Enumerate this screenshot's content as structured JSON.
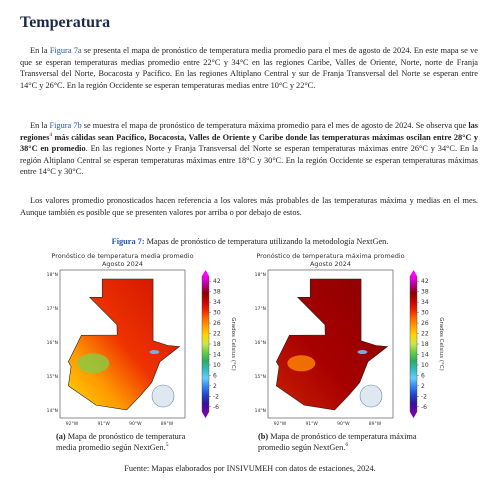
{
  "header": {
    "title": "Temperatura"
  },
  "paragraphs": [
    [
      {
        "text": "En la "
      },
      {
        "text": "Figura 7a",
        "style": "link"
      },
      {
        "text": " se presenta el mapa de pronóstico de temperatura media promedio para el mes de agosto de 2024. En este mapa se ve que se esperan temperaturas medias promedio entre 22°C y 34°C en las regiones Caribe, Valles de Oriente, Norte, norte de Franja Transversal del Norte, Bocacosta y Pacífico. En las regiones Altiplano Central y sur de Franja Transversal del Norte se esperan entre 14°C y 26°C. En la región Occidente se esperan temperaturas medias entre 10°C y 22°C."
      }
    ],
    [
      {
        "text": "En la "
      },
      {
        "text": "Figura 7b",
        "style": "link"
      },
      {
        "text": " se muestra el mapa de pronóstico de temperatura máxima promedio para el mes de agosto de 2024. Se observa que "
      },
      {
        "text": "las regiones",
        "style": "bold"
      },
      {
        "text": "4",
        "style": "sup"
      },
      {
        "text": " más cálidas sean Pacífico, Bocacosta, Valles de Oriente y Caribe donde las temperaturas máximas oscilan entre 28°C y 38°C en promedio",
        "style": "bold"
      },
      {
        "text": ". En las regiones Norte y Franja Transversal del Norte se esperan temperaturas máximas entre 26°C y 34°C. En la región Altiplano Central se esperan temperaturas máximas entre 18°C y 30°C. En la región Occidente se esperan temperaturas máximas entre 14°C y 30°C."
      }
    ],
    [
      {
        "text": "Los valores promedio pronosticados hacen referencia a los valores más probables de las temperaturas máxima y medias en el mes. Aunque también es posible que se presenten valores por arriba o por debajo de estos."
      }
    ]
  ],
  "figure": {
    "caption": [
      {
        "text": "Figura 7:",
        "style": "bold-link"
      },
      {
        "text": " Mapas de pronóstico de temperatura utilizando la metodología NextGen."
      }
    ],
    "maps": [
      {
        "title": "Pronóstico de temperatura media promedio",
        "subtitle": "Agosto 2024",
        "palette": "media",
        "caption": [
          {
            "text": "(a)",
            "style": "bold"
          },
          {
            "text": " Mapa de pronóstico de temperatura media promedio según NextGen."
          },
          {
            "text": "5",
            "style": "sup"
          }
        ]
      },
      {
        "title": "Pronóstico de temperatura máxima promedio",
        "subtitle": "Agosto 2024",
        "palette": "maxima",
        "caption": [
          {
            "text": "(b)",
            "style": "bold"
          },
          {
            "text": " Mapa de pronóstico de temperatura máxima promedio según NextGen."
          },
          {
            "text": "6",
            "style": "sup"
          }
        ]
      }
    ],
    "lat_labels": [
      "18°N",
      "17°N",
      "16°N",
      "15°N",
      "14°N"
    ],
    "lon_labels": [
      "92°W",
      "91°W",
      "90°W",
      "89°W"
    ],
    "colorbar": {
      "label": "Grados Celsius (°C)",
      "lim": [
        -8,
        44
      ],
      "ticks": [
        42,
        38,
        34,
        30,
        26,
        22,
        18,
        14,
        10,
        6,
        2,
        -2,
        -6
      ],
      "colors": [
        "#ff00ff",
        "#b4009b",
        "#8b0000",
        "#c80000",
        "#ee2200",
        "#ff6a00",
        "#ffa500",
        "#ffd700",
        "#c8e650",
        "#66cc44",
        "#2eaa66",
        "#33bbbb",
        "#66ccff",
        "#3388ee",
        "#2244cc",
        "#331199",
        "#7700aa"
      ]
    },
    "source": "Fuente: Mapas elaborados por INSIVUMEH con datos de estaciones, 2024."
  }
}
